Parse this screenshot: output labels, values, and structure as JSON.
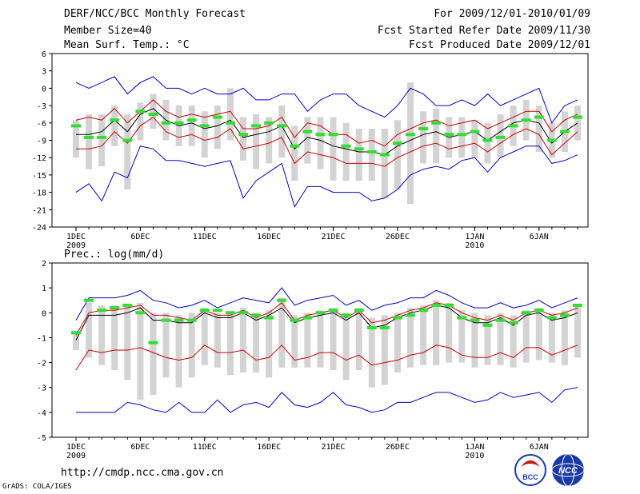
{
  "header": {
    "title": "DERF/NCC/BCC Monthly Forecast",
    "member_size": "Member Size=40",
    "period": "For 2009/12/01-2010/01/09",
    "fcst_started": "Fcst Started Refer Date 2009/11/30",
    "fcst_produced": "Fcst Produced Date 2009/12/01"
  },
  "footer": {
    "url": "http://cmdp.ncc.cma.gov.cn",
    "credit": "GrADS: COLA/IGES",
    "logo1_text": "BCC",
    "logo2_text": "NCC"
  },
  "colors": {
    "spread_box": "#d3d3d3",
    "envelope": "#0000cc",
    "std_band": "#cc0000",
    "mean": "#000000",
    "ensemble_marker": "#33dd33"
  },
  "chart_data": [
    {
      "type": "line",
      "title": "Mean Surf. Temp.: °C",
      "ylim": [
        -24,
        6
      ],
      "yticks": [
        6,
        3,
        0,
        -3,
        -6,
        -9,
        -12,
        -15,
        -18,
        -21,
        -24
      ],
      "xticks": [
        {
          "day": 1,
          "label": "1DEC",
          "sublabel": "2009"
        },
        {
          "day": 6,
          "label": "6DEC",
          "sublabel": ""
        },
        {
          "day": 11,
          "label": "11DEC",
          "sublabel": ""
        },
        {
          "day": 16,
          "label": "16DEC",
          "sublabel": ""
        },
        {
          "day": 21,
          "label": "21DEC",
          "sublabel": ""
        },
        {
          "day": 26,
          "label": "26DEC",
          "sublabel": ""
        },
        {
          "day": 32,
          "label": "1JAN",
          "sublabel": "2010"
        },
        {
          "day": 37,
          "label": "6JAN",
          "sublabel": ""
        }
      ],
      "days": [
        1,
        2,
        3,
        4,
        5,
        6,
        7,
        8,
        9,
        10,
        11,
        12,
        13,
        14,
        15,
        16,
        17,
        18,
        19,
        20,
        21,
        22,
        23,
        24,
        25,
        26,
        27,
        28,
        29,
        30,
        31,
        32,
        33,
        34,
        35,
        36,
        37,
        38,
        39,
        40
      ],
      "series": [
        {
          "name": "max",
          "values": [
            1,
            0,
            1,
            2,
            -1,
            1,
            2,
            0,
            0,
            -1,
            0,
            -1,
            -1,
            0,
            -2,
            -2,
            -1,
            -1,
            -4,
            -2,
            -1,
            -1,
            -3,
            -4,
            -5,
            -3,
            0,
            -1,
            -3,
            -3,
            -2,
            -3,
            -1,
            -3,
            -2,
            -1,
            0,
            -6,
            -3,
            -2
          ]
        },
        {
          "name": "upper",
          "values": [
            -5.5,
            -5,
            -5.5,
            -3.5,
            -6,
            -4,
            -2,
            -4,
            -5,
            -4.5,
            -5,
            -4.5,
            -4,
            -7,
            -7,
            -6.5,
            -5,
            -8.5,
            -6,
            -6.5,
            -8,
            -8,
            -9.5,
            -9,
            -10,
            -8,
            -7,
            -6,
            -5.5,
            -6.5,
            -6,
            -5.5,
            -7,
            -6,
            -5,
            -4,
            -4,
            -7.5,
            -5.5,
            -4.5
          ]
        },
        {
          "name": "mean",
          "values": [
            -8,
            -8,
            -7.5,
            -5.5,
            -7.5,
            -4.5,
            -3.5,
            -5.5,
            -6.5,
            -6,
            -7,
            -6.5,
            -5.5,
            -8.5,
            -8,
            -7.5,
            -6.5,
            -10.5,
            -8.5,
            -9,
            -10,
            -10.5,
            -11,
            -11,
            -11.5,
            -10,
            -9,
            -8,
            -7.5,
            -8.5,
            -8,
            -7.5,
            -9,
            -7.5,
            -6,
            -5.5,
            -6,
            -9.5,
            -7.5,
            -6
          ]
        },
        {
          "name": "lower",
          "values": [
            -10.5,
            -10.5,
            -10,
            -7.5,
            -9.5,
            -6.5,
            -5,
            -7.5,
            -8.5,
            -8,
            -9,
            -8.5,
            -7,
            -10.5,
            -10,
            -9.5,
            -8.5,
            -13,
            -11,
            -11.5,
            -12,
            -13,
            -13,
            -13,
            -13.5,
            -12,
            -11,
            -10,
            -9.5,
            -10.5,
            -10,
            -9.5,
            -11,
            -9.5,
            -8,
            -7,
            -8,
            -11.5,
            -9.5,
            -7.5
          ]
        },
        {
          "name": "min",
          "values": [
            -18,
            -16.5,
            -19.5,
            -14.5,
            -15.5,
            -10,
            -10.5,
            -12.5,
            -12.5,
            -13,
            -13.5,
            -13,
            -12.5,
            -19,
            -16,
            -14.5,
            -13,
            -20.5,
            -17,
            -17,
            -18,
            -18,
            -18,
            -19.5,
            -19,
            -17.5,
            -15,
            -14,
            -13.5,
            -14,
            -12.5,
            -12,
            -14.5,
            -12,
            -11,
            -10,
            -10,
            -13,
            -12.5,
            -11.5
          ]
        },
        {
          "name": "box_top",
          "values": [
            -5.5,
            -4.5,
            -4.5,
            -3,
            -4.5,
            -2.5,
            -1,
            -2,
            -3,
            -3,
            -4,
            -3,
            0,
            -5,
            -4.5,
            -5,
            -3,
            -6.5,
            -5,
            -5,
            -5,
            -6,
            -7,
            -7,
            -7,
            -5.5,
            1,
            -4,
            -3.5,
            -5,
            -5,
            -5.5,
            -6,
            -4.5,
            -3,
            -2,
            -3,
            -6,
            -4,
            -3
          ]
        },
        {
          "name": "box_bottom",
          "values": [
            -12,
            -14,
            -13.5,
            -10,
            -17.5,
            -9,
            -7,
            -9,
            -10,
            -10,
            -12,
            -10.5,
            -9,
            -12.5,
            -14,
            -13,
            -12,
            -16,
            -13,
            -14,
            -16,
            -16,
            -16,
            -16,
            -19,
            -17.5,
            -20,
            -13,
            -13,
            -12,
            -12,
            -12,
            -13,
            -12,
            -10,
            -9,
            -11,
            -12,
            -11,
            -9
          ]
        },
        {
          "name": "ensemble",
          "values": [
            -6.5,
            -8.5,
            -8.5,
            -5.5,
            -9,
            -4,
            -4.5,
            -6,
            -6,
            -5.5,
            -6.5,
            -5,
            -6,
            -8,
            -6.5,
            -6,
            -6.5,
            -10,
            -7.5,
            -8,
            -8,
            -10,
            -10.5,
            -11,
            -11.5,
            -9.5,
            -8,
            -7,
            -6,
            -8,
            -8,
            -7.5,
            -9,
            -8.5,
            -6.5,
            -5.5,
            -5,
            -9,
            -7.5,
            -5
          ]
        }
      ]
    },
    {
      "type": "line",
      "title": "Prec.: log(mm/d)",
      "ylim": [
        -5,
        2
      ],
      "yticks": [
        2,
        1,
        0,
        -1,
        -2,
        -3,
        -4,
        -5
      ],
      "xticks": [
        {
          "day": 1,
          "label": "1DEC",
          "sublabel": "2009"
        },
        {
          "day": 6,
          "label": "6DEC",
          "sublabel": ""
        },
        {
          "day": 11,
          "label": "11DEC",
          "sublabel": ""
        },
        {
          "day": 16,
          "label": "16DEC",
          "sublabel": ""
        },
        {
          "day": 21,
          "label": "21DEC",
          "sublabel": ""
        },
        {
          "day": 26,
          "label": "26DEC",
          "sublabel": ""
        },
        {
          "day": 32,
          "label": "1JAN",
          "sublabel": "2010"
        },
        {
          "day": 37,
          "label": "6JAN",
          "sublabel": ""
        }
      ],
      "days": [
        1,
        2,
        3,
        4,
        5,
        6,
        7,
        8,
        9,
        10,
        11,
        12,
        13,
        14,
        15,
        16,
        17,
        18,
        19,
        20,
        21,
        22,
        23,
        24,
        25,
        26,
        27,
        28,
        29,
        30,
        31,
        32,
        33,
        34,
        35,
        36,
        37,
        38,
        39,
        40
      ],
      "series": [
        {
          "name": "max",
          "values": [
            -0.3,
            0.6,
            0.6,
            0.6,
            0.7,
            0.9,
            0.5,
            0.4,
            0.2,
            0.3,
            0.5,
            0.2,
            0.4,
            0.6,
            0.5,
            0.4,
            1,
            0.3,
            0.5,
            0.6,
            0.7,
            0.3,
            0.5,
            0.1,
            0.3,
            0.4,
            0.6,
            0.6,
            0.9,
            0.7,
            0.4,
            0.2,
            0.2,
            0.4,
            0.2,
            0.3,
            0.5,
            0.2,
            0.4,
            0.6
          ]
        },
        {
          "name": "upper",
          "values": [
            -0.9,
            0,
            0.1,
            0.1,
            0.2,
            0.3,
            -0.1,
            -0.1,
            -0.2,
            -0.3,
            0.1,
            -0.1,
            -0.1,
            0.1,
            -0.2,
            0,
            0.4,
            -0.3,
            -0.1,
            0,
            0.1,
            -0.2,
            0.1,
            -0.4,
            -0.3,
            -0.1,
            0.1,
            0.2,
            0.4,
            0.3,
            0,
            -0.2,
            -0.3,
            -0.1,
            -0.3,
            0,
            0.1,
            -0.1,
            0,
            0.2
          ]
        },
        {
          "name": "mean",
          "values": [
            -1.1,
            -0.1,
            -0.1,
            -0.1,
            0,
            0.2,
            -0.3,
            -0.3,
            -0.4,
            -0.4,
            0,
            -0.2,
            -0.2,
            0,
            -0.3,
            -0.1,
            0.2,
            -0.4,
            -0.2,
            -0.1,
            0,
            -0.3,
            0,
            -0.6,
            -0.5,
            -0.2,
            0,
            0.1,
            0.3,
            0.2,
            -0.2,
            -0.4,
            -0.4,
            -0.2,
            -0.5,
            -0.1,
            0,
            -0.3,
            -0.2,
            0
          ]
        },
        {
          "name": "lower",
          "values": [
            -2.3,
            -1.5,
            -1.6,
            -1.5,
            -1.5,
            -1.4,
            -1.6,
            -1.8,
            -1.9,
            -1.8,
            -1.3,
            -1.6,
            -1.6,
            -1.5,
            -1.9,
            -1.8,
            -1.3,
            -1.9,
            -1.8,
            -1.6,
            -1.6,
            -1.9,
            -1.7,
            -2.1,
            -2,
            -1.9,
            -1.7,
            -1.6,
            -1.3,
            -1.4,
            -1.7,
            -1.8,
            -1.8,
            -1.6,
            -1.8,
            -1.4,
            -1.4,
            -1.7,
            -1.5,
            -1.3
          ]
        },
        {
          "name": "min",
          "values": [
            -4,
            -4,
            -4,
            -4,
            -3.6,
            -3.7,
            -3.9,
            -4,
            -3.6,
            -4,
            -4,
            -3.5,
            -4,
            -3.7,
            -3.6,
            -3.8,
            -3.2,
            -3.7,
            -3.8,
            -3.6,
            -3.2,
            -3.7,
            -3.8,
            -4,
            -3.9,
            -3.6,
            -3.6,
            -3.4,
            -3.2,
            -3.2,
            -3.4,
            -3.6,
            -3.5,
            -3.2,
            -3.4,
            -3.3,
            -3.2,
            -3.6,
            -3.1,
            -3
          ]
        },
        {
          "name": "box_top",
          "values": [
            -0.8,
            0.4,
            0.3,
            0.3,
            0.3,
            0.4,
            0,
            0,
            -0.1,
            0,
            0.2,
            0,
            0,
            0.2,
            0,
            0.1,
            0.6,
            -0.1,
            0,
            0.1,
            0.2,
            0,
            0.2,
            -0.2,
            -0.1,
            0,
            0.2,
            0.3,
            0.5,
            0.4,
            0.1,
            0,
            -0.1,
            0,
            -0.1,
            0.1,
            0.2,
            0,
            0.1,
            0.3
          ]
        },
        {
          "name": "box_bottom",
          "values": [
            -1.5,
            -1.8,
            -2.1,
            -2.3,
            -2.7,
            -3.5,
            -3.3,
            -2.6,
            -3,
            -2.6,
            -2.1,
            -2.2,
            -2.5,
            -2.4,
            -2.4,
            -2.6,
            -2.2,
            -2.2,
            -2.2,
            -2.2,
            -2.3,
            -2.7,
            -2.3,
            -3,
            -2.9,
            -2.4,
            -2.2,
            -2.1,
            -2.1,
            -2,
            -2,
            -2.2,
            -2.1,
            -2.1,
            -2.2,
            -2,
            -1.9,
            -2,
            -2.1,
            -1.8
          ]
        },
        {
          "name": "ensemble",
          "values": [
            -0.8,
            0.5,
            0.1,
            0.2,
            0.3,
            0,
            -1.2,
            -0.3,
            -0.3,
            -0.3,
            0.1,
            0.1,
            0,
            0,
            -0.1,
            -0.2,
            0.5,
            -0.3,
            -0.2,
            0,
            0.1,
            -0.1,
            0.1,
            -0.6,
            -0.6,
            -0.2,
            -0.1,
            0.1,
            0.3,
            0.3,
            -0.2,
            -0.3,
            -0.5,
            -0.3,
            -0.4,
            0,
            0.1,
            -0.2,
            -0.1,
            0.3
          ]
        }
      ]
    }
  ]
}
